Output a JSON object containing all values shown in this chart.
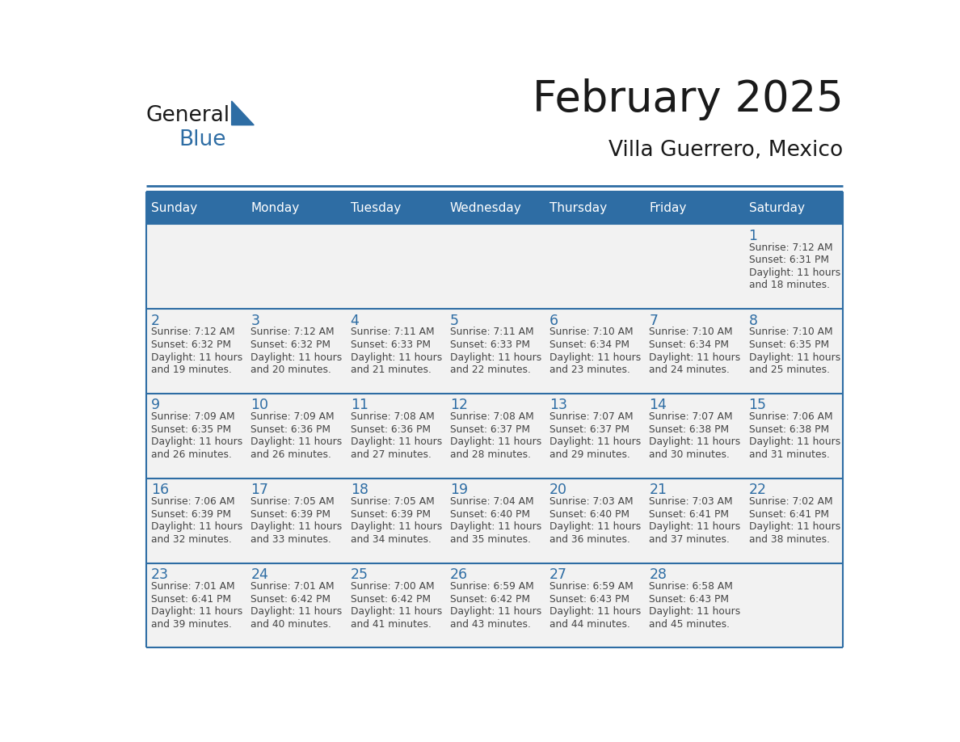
{
  "title": "February 2025",
  "subtitle": "Villa Guerrero, Mexico",
  "header_bg": "#2E6DA4",
  "header_text_color": "#FFFFFF",
  "day_names": [
    "Sunday",
    "Monday",
    "Tuesday",
    "Wednesday",
    "Thursday",
    "Friday",
    "Saturday"
  ],
  "border_color": "#2E6DA4",
  "date_color": "#2E6DA4",
  "text_color": "#444444",
  "title_color": "#1a1a1a",
  "cell_bg": "#F2F2F2",
  "calendar": [
    [
      null,
      null,
      null,
      null,
      null,
      null,
      {
        "day": 1,
        "sunrise": "7:12 AM",
        "sunset": "6:31 PM",
        "daylight": "11 hours and 18 minutes."
      }
    ],
    [
      {
        "day": 2,
        "sunrise": "7:12 AM",
        "sunset": "6:32 PM",
        "daylight": "11 hours and 19 minutes."
      },
      {
        "day": 3,
        "sunrise": "7:12 AM",
        "sunset": "6:32 PM",
        "daylight": "11 hours and 20 minutes."
      },
      {
        "day": 4,
        "sunrise": "7:11 AM",
        "sunset": "6:33 PM",
        "daylight": "11 hours and 21 minutes."
      },
      {
        "day": 5,
        "sunrise": "7:11 AM",
        "sunset": "6:33 PM",
        "daylight": "11 hours and 22 minutes."
      },
      {
        "day": 6,
        "sunrise": "7:10 AM",
        "sunset": "6:34 PM",
        "daylight": "11 hours and 23 minutes."
      },
      {
        "day": 7,
        "sunrise": "7:10 AM",
        "sunset": "6:34 PM",
        "daylight": "11 hours and 24 minutes."
      },
      {
        "day": 8,
        "sunrise": "7:10 AM",
        "sunset": "6:35 PM",
        "daylight": "11 hours and 25 minutes."
      }
    ],
    [
      {
        "day": 9,
        "sunrise": "7:09 AM",
        "sunset": "6:35 PM",
        "daylight": "11 hours and 26 minutes."
      },
      {
        "day": 10,
        "sunrise": "7:09 AM",
        "sunset": "6:36 PM",
        "daylight": "11 hours and 26 minutes."
      },
      {
        "day": 11,
        "sunrise": "7:08 AM",
        "sunset": "6:36 PM",
        "daylight": "11 hours and 27 minutes."
      },
      {
        "day": 12,
        "sunrise": "7:08 AM",
        "sunset": "6:37 PM",
        "daylight": "11 hours and 28 minutes."
      },
      {
        "day": 13,
        "sunrise": "7:07 AM",
        "sunset": "6:37 PM",
        "daylight": "11 hours and 29 minutes."
      },
      {
        "day": 14,
        "sunrise": "7:07 AM",
        "sunset": "6:38 PM",
        "daylight": "11 hours and 30 minutes."
      },
      {
        "day": 15,
        "sunrise": "7:06 AM",
        "sunset": "6:38 PM",
        "daylight": "11 hours and 31 minutes."
      }
    ],
    [
      {
        "day": 16,
        "sunrise": "7:06 AM",
        "sunset": "6:39 PM",
        "daylight": "11 hours and 32 minutes."
      },
      {
        "day": 17,
        "sunrise": "7:05 AM",
        "sunset": "6:39 PM",
        "daylight": "11 hours and 33 minutes."
      },
      {
        "day": 18,
        "sunrise": "7:05 AM",
        "sunset": "6:39 PM",
        "daylight": "11 hours and 34 minutes."
      },
      {
        "day": 19,
        "sunrise": "7:04 AM",
        "sunset": "6:40 PM",
        "daylight": "11 hours and 35 minutes."
      },
      {
        "day": 20,
        "sunrise": "7:03 AM",
        "sunset": "6:40 PM",
        "daylight": "11 hours and 36 minutes."
      },
      {
        "day": 21,
        "sunrise": "7:03 AM",
        "sunset": "6:41 PM",
        "daylight": "11 hours and 37 minutes."
      },
      {
        "day": 22,
        "sunrise": "7:02 AM",
        "sunset": "6:41 PM",
        "daylight": "11 hours and 38 minutes."
      }
    ],
    [
      {
        "day": 23,
        "sunrise": "7:01 AM",
        "sunset": "6:41 PM",
        "daylight": "11 hours and 39 minutes."
      },
      {
        "day": 24,
        "sunrise": "7:01 AM",
        "sunset": "6:42 PM",
        "daylight": "11 hours and 40 minutes."
      },
      {
        "day": 25,
        "sunrise": "7:00 AM",
        "sunset": "6:42 PM",
        "daylight": "11 hours and 41 minutes."
      },
      {
        "day": 26,
        "sunrise": "6:59 AM",
        "sunset": "6:42 PM",
        "daylight": "11 hours and 43 minutes."
      },
      {
        "day": 27,
        "sunrise": "6:59 AM",
        "sunset": "6:43 PM",
        "daylight": "11 hours and 44 minutes."
      },
      {
        "day": 28,
        "sunrise": "6:58 AM",
        "sunset": "6:43 PM",
        "daylight": "11 hours and 45 minutes."
      },
      null
    ]
  ]
}
